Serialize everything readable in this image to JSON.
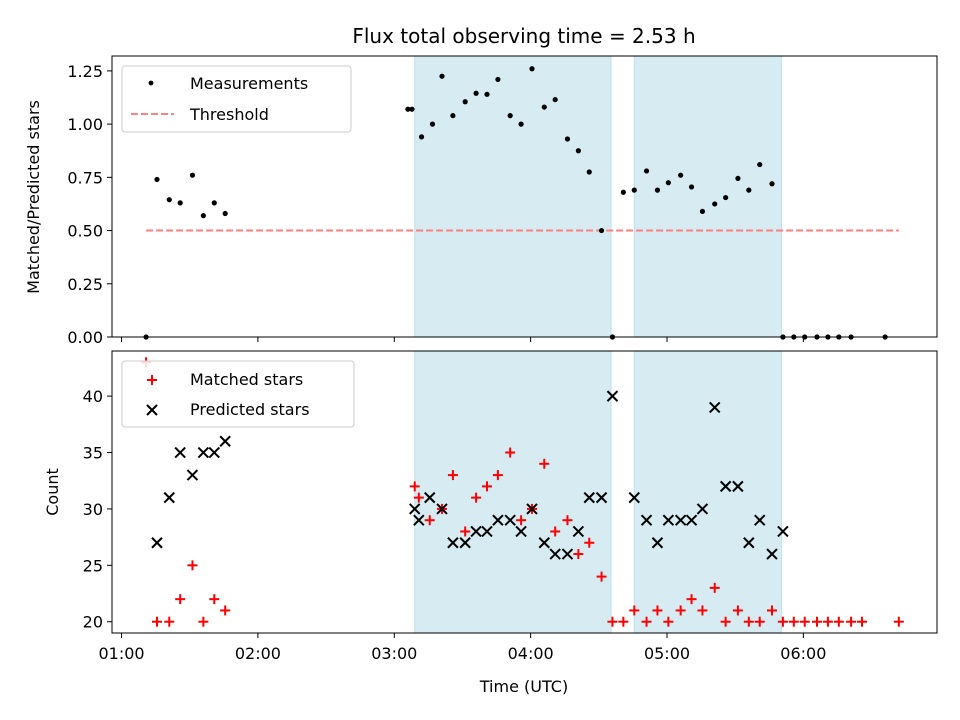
{
  "chart_data": [
    {
      "type": "scatter",
      "title": "Flux total observing time = 2.53 h",
      "xlabel": "",
      "ylabel": "Matched/Predicted stars",
      "ylim": [
        0,
        1.32
      ],
      "yticks": [
        "0.00",
        "0.25",
        "0.50",
        "0.75",
        "1.00",
        "1.25"
      ],
      "legend": {
        "position": "upper-left",
        "entries": [
          "Measurements",
          "Threshold"
        ]
      },
      "series": [
        {
          "name": "Measurements",
          "marker": "dot",
          "color": "#000000",
          "points": [
            [
              "01:18",
              0.0
            ],
            [
              "01:26",
              0.74
            ],
            [
              "01:35",
              0.645
            ],
            [
              "01:43",
              0.63
            ],
            [
              "01:52",
              0.76
            ],
            [
              "01:60",
              0.57
            ],
            [
              "01:68",
              0.63
            ],
            [
              "01:76",
              0.58
            ],
            [
              "03:10",
              1.07
            ],
            [
              "03:13",
              1.07
            ],
            [
              "03:20",
              0.94
            ],
            [
              "03:28",
              1.0
            ],
            [
              "03:35",
              1.225
            ],
            [
              "03:43",
              1.04
            ],
            [
              "03:52",
              1.105
            ],
            [
              "03:60",
              1.145
            ],
            [
              "03:68",
              1.14
            ],
            [
              "03:76",
              1.21
            ],
            [
              "03:85",
              1.04
            ],
            [
              "03:93",
              1.0
            ],
            [
              "04:01",
              1.26
            ],
            [
              "04:10",
              1.08
            ],
            [
              "04:18",
              1.115
            ],
            [
              "04:27",
              0.93
            ],
            [
              "04:35",
              0.875
            ],
            [
              "04:43",
              0.775
            ],
            [
              "04:52",
              0.5
            ],
            [
              "04:60",
              0.0
            ],
            [
              "04:68",
              0.68
            ],
            [
              "04:76",
              0.69
            ],
            [
              "04:85",
              0.78
            ],
            [
              "04:93",
              0.69
            ],
            [
              "05:01",
              0.725
            ],
            [
              "05:10",
              0.76
            ],
            [
              "05:18",
              0.705
            ],
            [
              "05:26",
              0.59
            ],
            [
              "05:35",
              0.625
            ],
            [
              "05:43",
              0.655
            ],
            [
              "05:52",
              0.745
            ],
            [
              "05:60",
              0.69
            ],
            [
              "05:68",
              0.81
            ],
            [
              "05:77",
              0.72
            ],
            [
              "05:85",
              0.0
            ],
            [
              "05:93",
              0.0
            ],
            [
              "06:01",
              0.0
            ],
            [
              "06:10",
              0.0
            ],
            [
              "06:18",
              0.0
            ],
            [
              "06:26",
              0.0
            ],
            [
              "06:35",
              0.0
            ],
            [
              "06:60",
              0.0
            ]
          ]
        },
        {
          "name": "Threshold",
          "style": "dashed",
          "color": "#ff7f7f",
          "x": [
            "01:18",
            "06:70"
          ],
          "y": [
            0.5,
            0.5
          ]
        }
      ],
      "shaded_regions": [
        [
          "03:15",
          "04:59"
        ],
        [
          "04:76",
          "05:84"
        ]
      ]
    },
    {
      "type": "scatter",
      "title": "",
      "xlabel": "Time (UTC)",
      "ylabel": "Count",
      "ylim": [
        19,
        44
      ],
      "yticks": [
        "20",
        "25",
        "30",
        "35",
        "40"
      ],
      "xticks": [
        "01:00",
        "02:00",
        "03:00",
        "04:00",
        "05:00",
        "06:00"
      ],
      "xlim": [
        "00:93",
        "06:98"
      ],
      "legend": {
        "position": "upper-left",
        "entries": [
          "Matched stars",
          "Predicted stars"
        ]
      },
      "series": [
        {
          "name": "Matched stars",
          "marker": "plus",
          "color": "#ff0000",
          "points": [
            [
              "01:18",
              43
            ],
            [
              "01:26",
              20
            ],
            [
              "01:35",
              20
            ],
            [
              "01:43",
              22
            ],
            [
              "01:52",
              25
            ],
            [
              "01:60",
              20
            ],
            [
              "01:68",
              22
            ],
            [
              "01:76",
              21
            ],
            [
              "03:15",
              32
            ],
            [
              "03:18",
              31
            ],
            [
              "03:26",
              29
            ],
            [
              "03:35",
              30
            ],
            [
              "03:43",
              33
            ],
            [
              "03:52",
              28
            ],
            [
              "03:60",
              31
            ],
            [
              "03:68",
              32
            ],
            [
              "03:76",
              33
            ],
            [
              "03:85",
              35
            ],
            [
              "03:93",
              29
            ],
            [
              "04:01",
              30
            ],
            [
              "04:10",
              34
            ],
            [
              "04:18",
              28
            ],
            [
              "04:27",
              29
            ],
            [
              "04:35",
              26
            ],
            [
              "04:43",
              27
            ],
            [
              "04:52",
              24
            ],
            [
              "04:60",
              20
            ],
            [
              "04:68",
              20
            ],
            [
              "04:76",
              21
            ],
            [
              "04:85",
              20
            ],
            [
              "04:93",
              21
            ],
            [
              "05:01",
              20
            ],
            [
              "05:10",
              21
            ],
            [
              "05:18",
              22
            ],
            [
              "05:26",
              21
            ],
            [
              "05:35",
              23
            ],
            [
              "05:43",
              20
            ],
            [
              "05:52",
              21
            ],
            [
              "05:60",
              20
            ],
            [
              "05:68",
              20
            ],
            [
              "05:77",
              21
            ],
            [
              "05:85",
              20
            ],
            [
              "05:93",
              20
            ],
            [
              "06:01",
              20
            ],
            [
              "06:10",
              20
            ],
            [
              "06:18",
              20
            ],
            [
              "06:26",
              20
            ],
            [
              "06:35",
              20
            ],
            [
              "06:43",
              20
            ],
            [
              "06:70",
              20
            ]
          ]
        },
        {
          "name": "Predicted stars",
          "marker": "x",
          "color": "#000000",
          "points": [
            [
              "01:26",
              27
            ],
            [
              "01:35",
              31
            ],
            [
              "01:43",
              35
            ],
            [
              "01:52",
              33
            ],
            [
              "01:60",
              35
            ],
            [
              "01:68",
              35
            ],
            [
              "01:76",
              36
            ],
            [
              "03:15",
              30
            ],
            [
              "03:18",
              29
            ],
            [
              "03:26",
              31
            ],
            [
              "03:35",
              30
            ],
            [
              "03:43",
              27
            ],
            [
              "03:52",
              27
            ],
            [
              "03:60",
              28
            ],
            [
              "03:68",
              28
            ],
            [
              "03:76",
              29
            ],
            [
              "03:85",
              29
            ],
            [
              "03:93",
              28
            ],
            [
              "04:01",
              30
            ],
            [
              "04:10",
              27
            ],
            [
              "04:18",
              26
            ],
            [
              "04:27",
              26
            ],
            [
              "04:35",
              28
            ],
            [
              "04:43",
              31
            ],
            [
              "04:52",
              31
            ],
            [
              "04:60",
              40
            ],
            [
              "04:76",
              31
            ],
            [
              "04:85",
              29
            ],
            [
              "04:93",
              27
            ],
            [
              "05:01",
              29
            ],
            [
              "05:10",
              29
            ],
            [
              "05:18",
              29
            ],
            [
              "05:26",
              30
            ],
            [
              "05:35",
              39
            ],
            [
              "05:43",
              32
            ],
            [
              "05:52",
              32
            ],
            [
              "05:60",
              27
            ],
            [
              "05:68",
              29
            ],
            [
              "05:77",
              26
            ],
            [
              "05:85",
              28
            ]
          ]
        }
      ],
      "shaded_regions": [
        [
          "03:15",
          "04:59"
        ],
        [
          "04:76",
          "05:84"
        ]
      ]
    }
  ],
  "colors": {
    "shade": "#add8e6",
    "matched": "#ff0000",
    "predicted": "#000000",
    "threshold": "#ff7f7f"
  }
}
